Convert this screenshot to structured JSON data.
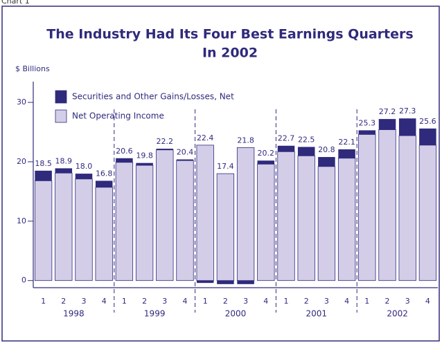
{
  "caption": "Chart 1",
  "chart_data": {
    "type": "stacked-bar",
    "title": [
      "The Industry Had Its Four Best Earnings Quarters",
      "In 2002"
    ],
    "y_label": "$ Billions",
    "categories": [
      "1",
      "2",
      "3",
      "4",
      "1",
      "2",
      "3",
      "4",
      "1",
      "2",
      "3",
      "4",
      "1",
      "2",
      "3",
      "4",
      "1",
      "2",
      "3",
      "4"
    ],
    "groups": [
      "1998",
      "1999",
      "2000",
      "2001",
      "2002"
    ],
    "series": [
      {
        "name": "Securities and Other Gains/Losses, Net",
        "color": "#2f2a7c",
        "values": [
          1.7,
          0.8,
          0.9,
          1.1,
          0.7,
          0.4,
          0.2,
          0.2,
          -0.4,
          -0.6,
          -0.6,
          0.6,
          1.0,
          1.5,
          1.6,
          1.5,
          0.7,
          1.8,
          2.9,
          2.8
        ]
      },
      {
        "name": "Net Operating Income",
        "color": "#d3cde8",
        "values": [
          16.8,
          18.1,
          17.1,
          15.7,
          19.9,
          19.4,
          22.0,
          20.2,
          22.8,
          18.0,
          22.4,
          19.6,
          21.7,
          21.0,
          19.2,
          20.6,
          24.6,
          25.4,
          24.4,
          22.8
        ]
      }
    ],
    "totals": {
      "values": [
        18.5,
        18.9,
        18.0,
        16.8,
        20.6,
        19.8,
        22.2,
        20.4,
        22.4,
        17.4,
        21.8,
        20.2,
        22.7,
        22.5,
        20.8,
        22.1,
        25.3,
        27.2,
        27.3,
        25.6
      ],
      "value_labels": [
        "18.5",
        "18.9",
        "18.0",
        "16.8",
        "20.6",
        "19.8",
        "22.2",
        "20.4",
        "22.4",
        "17.4",
        "21.8",
        "20.2",
        "22.7",
        "22.5",
        "20.8",
        "22.1",
        "25.3",
        "27.2",
        "27.3",
        "25.6"
      ]
    },
    "ylim": [
      -1.2,
      33.5
    ],
    "yticks": [
      0,
      10,
      20,
      30
    ]
  }
}
